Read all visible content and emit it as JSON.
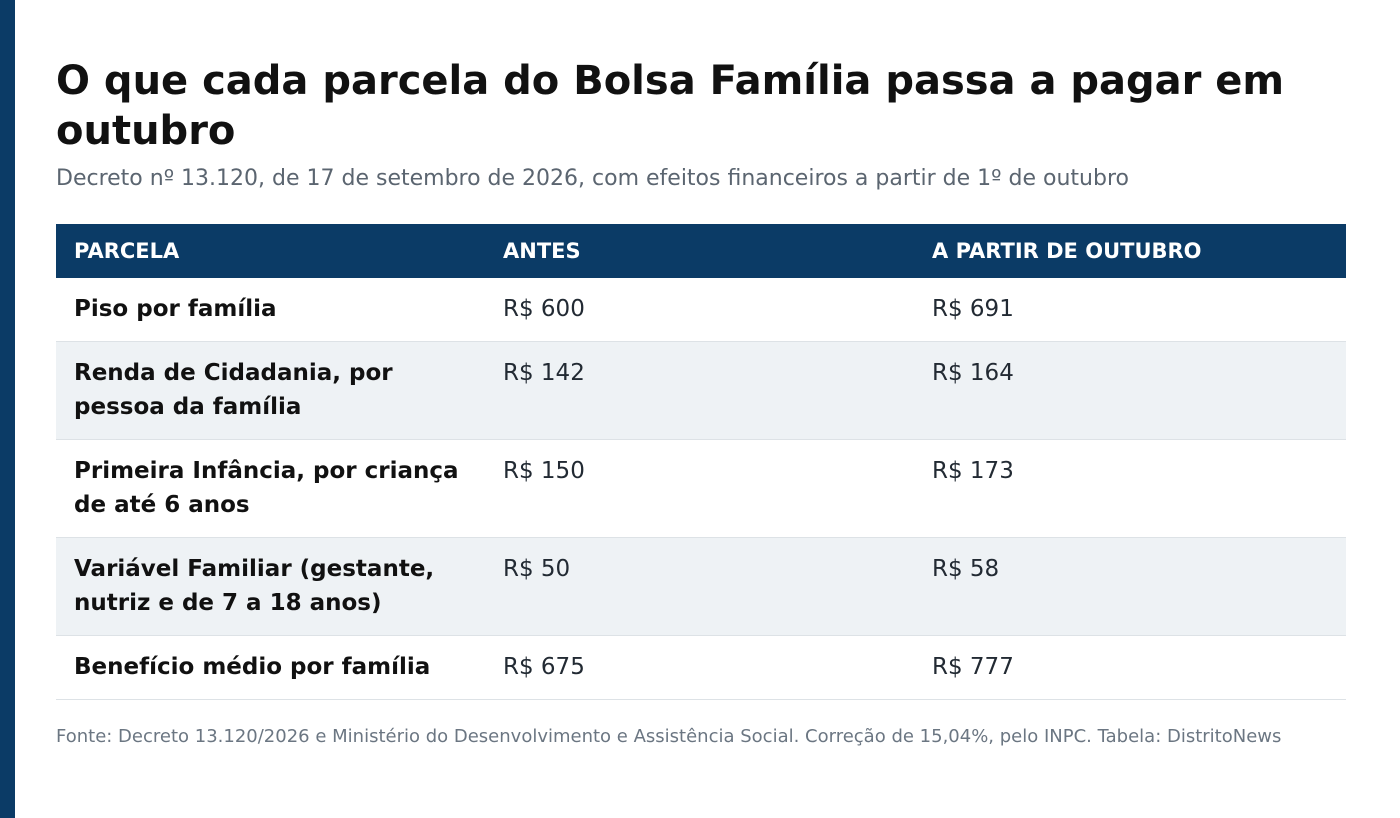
{
  "title": "O que cada parcela do Bolsa Família passa a pagar em outubro",
  "subtitle": "Decreto nº 13.120, de 17 de setembro de 2026, com efeitos financeiros a partir de 1º de outubro",
  "table": {
    "headers": [
      "PARCELA",
      "ANTES",
      "A PARTIR DE OUTUBRO"
    ],
    "rows": [
      [
        "Piso por família",
        "R$ 600",
        "R$ 691"
      ],
      [
        "Renda de Cidadania, por pessoa da família",
        "R$ 142",
        "R$ 164"
      ],
      [
        "Primeira Infância, por criança de até 6 anos",
        "R$ 150",
        "R$ 173"
      ],
      [
        "Variável Familiar (gestante, nutriz e de 7 a 18 anos)",
        "R$ 50",
        "R$ 58"
      ],
      [
        "Benefício médio por família",
        "R$ 675",
        "R$ 777"
      ]
    ]
  },
  "source": "Fonte: Decreto 13.120/2026 e Ministério do Desenvolvimento e Assistência Social. Correção de 15,04%, pelo INPC. Tabela: DistritoNews",
  "colors": {
    "accent": "#0b3b66",
    "header_bg": "#0b3b66",
    "alt_row_bg": "#eef2f5",
    "subtitle_text": "#5b6570"
  }
}
